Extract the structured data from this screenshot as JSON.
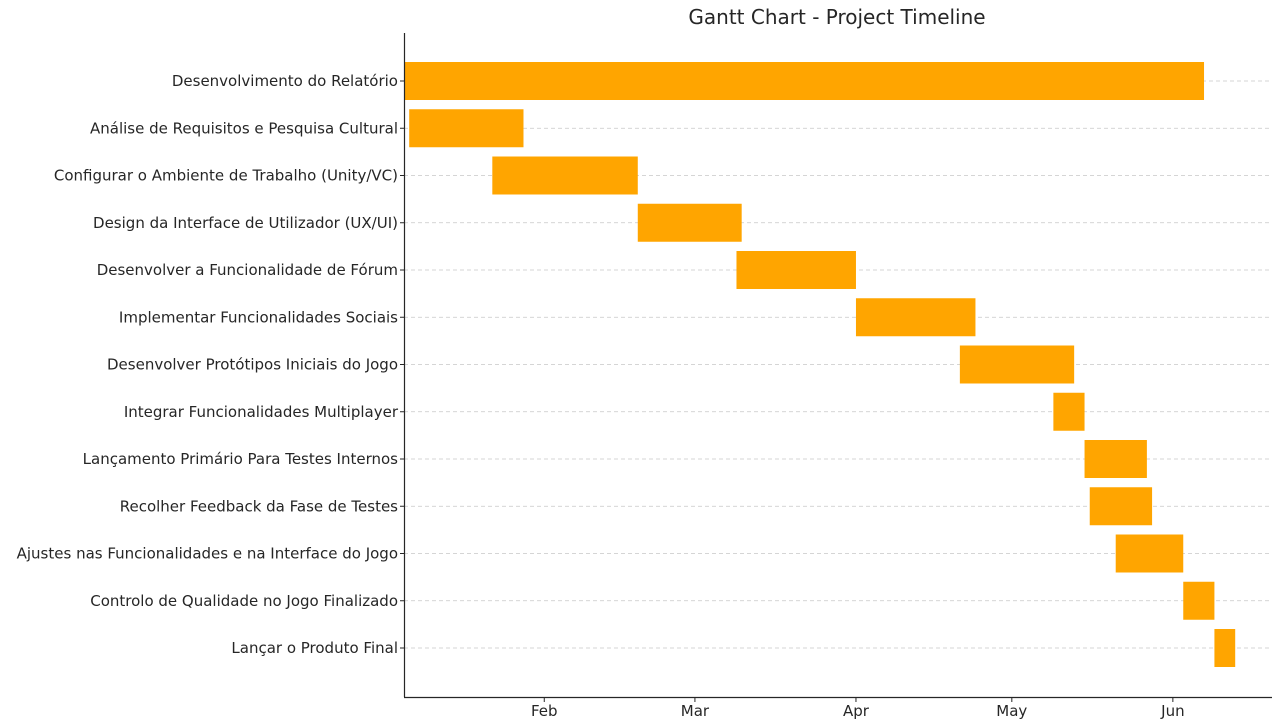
{
  "chart_data": {
    "type": "gantt",
    "title": "Gantt Chart - Project Timeline",
    "xlabel": "",
    "ylabel": "",
    "grid": "horizontal dashed",
    "bar_color": "#FFA500",
    "x_ticks": [
      "Feb",
      "Mar",
      "Apr",
      "May",
      "Jun"
    ],
    "tasks": [
      {
        "name": "Desenvolvimento do Relatório",
        "start": "2024-01-05",
        "end": "2024-06-07"
      },
      {
        "name": "Análise de Requisitos e Pesquisa Cultural",
        "start": "2024-01-06",
        "end": "2024-01-28"
      },
      {
        "name": "Configurar o Ambiente de Trabalho (Unity/VC)",
        "start": "2024-01-22",
        "end": "2024-02-19"
      },
      {
        "name": "Design da Interface de Utilizador (UX/UI)",
        "start": "2024-02-19",
        "end": "2024-03-10"
      },
      {
        "name": "Desenvolver a Funcionalidade de Fórum",
        "start": "2024-03-09",
        "end": "2024-04-01"
      },
      {
        "name": "Implementar Funcionalidades Sociais",
        "start": "2024-04-01",
        "end": "2024-04-24"
      },
      {
        "name": "Desenvolver Protótipos Iniciais do Jogo",
        "start": "2024-04-21",
        "end": "2024-05-13"
      },
      {
        "name": "Integrar Funcionalidades Multiplayer",
        "start": "2024-05-09",
        "end": "2024-05-15"
      },
      {
        "name": "Lançamento Primário Para Testes Internos",
        "start": "2024-05-15",
        "end": "2024-05-27"
      },
      {
        "name": "Recolher Feedback da Fase de Testes",
        "start": "2024-05-16",
        "end": "2024-05-28"
      },
      {
        "name": "Ajustes nas Funcionalidades e na Interface do Jogo",
        "start": "2024-05-21",
        "end": "2024-06-03"
      },
      {
        "name": "Controlo de Qualidade no Jogo Finalizado",
        "start": "2024-06-03",
        "end": "2024-06-09"
      },
      {
        "name": "Lançar o Produto Final",
        "start": "2024-06-09",
        "end": "2024-06-13"
      }
    ]
  }
}
